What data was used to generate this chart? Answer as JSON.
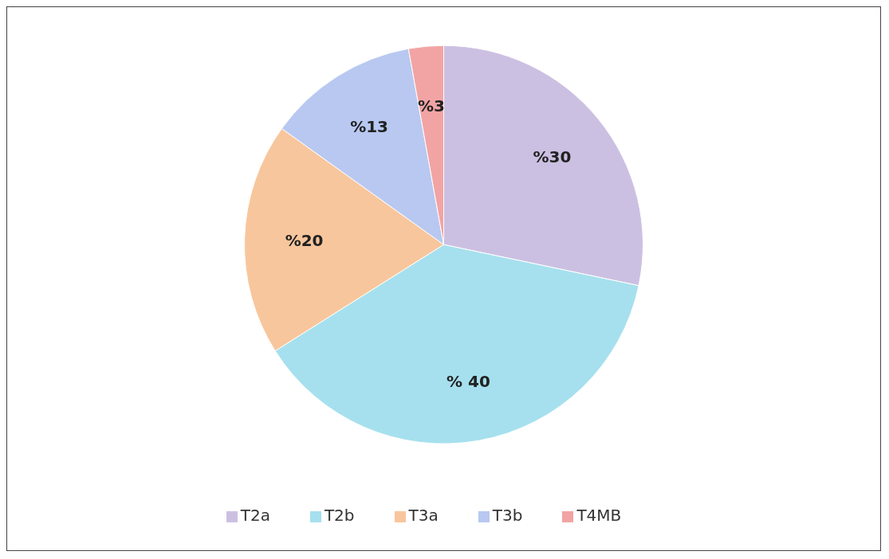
{
  "chart_data": {
    "type": "pie",
    "categories": [
      "T2a",
      "T2b",
      "T3a",
      "T3b",
      "T4MB"
    ],
    "values": [
      30,
      40,
      20,
      13,
      3
    ],
    "value_labels": [
      "%30",
      "% 40",
      "%20",
      "%13",
      "%3"
    ],
    "colors": [
      "#ccc0e2",
      "#a6e0ee",
      "#f8c69c",
      "#b8c8f0",
      "#f2a4a4"
    ],
    "legend": "bottom"
  }
}
